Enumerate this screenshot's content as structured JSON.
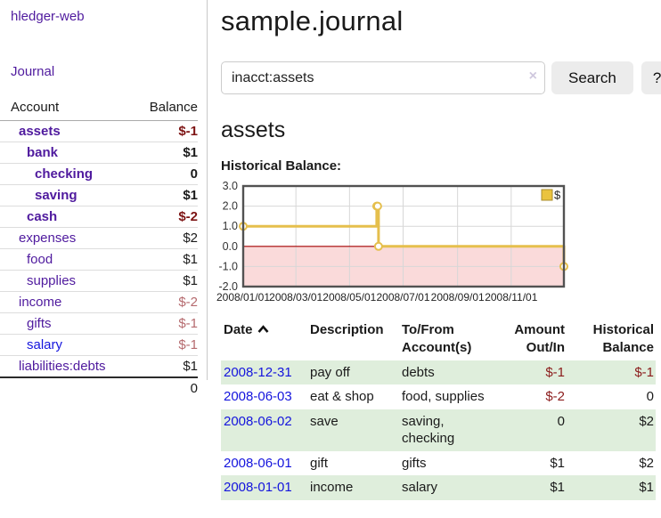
{
  "sidebar": {
    "app_title": "hledger-web",
    "journal_link": "Journal",
    "accounts_header": {
      "account": "Account",
      "balance": "Balance"
    },
    "accounts": [
      {
        "name": "assets",
        "depth": 1,
        "bold": true,
        "balance": "$-1",
        "balance_tone": "neg-strong",
        "link_tone": "purple"
      },
      {
        "name": "bank",
        "depth": 2,
        "bold": true,
        "balance": "$1",
        "balance_tone": "pos",
        "link_tone": "purple"
      },
      {
        "name": "checking",
        "depth": 3,
        "bold": true,
        "balance": "0",
        "balance_tone": "pos",
        "link_tone": "purple"
      },
      {
        "name": "saving",
        "depth": 3,
        "bold": true,
        "balance": "$1",
        "balance_tone": "pos",
        "link_tone": "purple"
      },
      {
        "name": "cash",
        "depth": 2,
        "bold": true,
        "balance": "$-2",
        "balance_tone": "neg-strong",
        "link_tone": "purple"
      },
      {
        "name": "expenses",
        "depth": 1,
        "bold": false,
        "balance": "$2",
        "balance_tone": "pos",
        "link_tone": "purple"
      },
      {
        "name": "food",
        "depth": 2,
        "bold": false,
        "balance": "$1",
        "balance_tone": "pos",
        "link_tone": "purple"
      },
      {
        "name": "supplies",
        "depth": 2,
        "bold": false,
        "balance": "$1",
        "balance_tone": "pos",
        "link_tone": "purple"
      },
      {
        "name": "income",
        "depth": 1,
        "bold": false,
        "balance": "$-2",
        "balance_tone": "neg-muted",
        "link_tone": "purple"
      },
      {
        "name": "gifts",
        "depth": 2,
        "bold": false,
        "balance": "$-1",
        "balance_tone": "neg-muted",
        "link_tone": "purple"
      },
      {
        "name": "salary",
        "depth": 2,
        "bold": false,
        "balance": "$-1",
        "balance_tone": "neg-muted",
        "link_tone": "blue"
      },
      {
        "name": "liabilities:debts",
        "depth": 1,
        "bold": false,
        "balance": "$1",
        "balance_tone": "pos",
        "link_tone": "purple"
      }
    ],
    "total": "0"
  },
  "main": {
    "title": "sample.journal",
    "search": {
      "value": "inacct:assets",
      "clear_icon": "×",
      "button_label": "Search",
      "help_label": "?"
    },
    "account_heading": "assets",
    "chart_title": "Historical Balance:"
  },
  "register": {
    "headers": {
      "date": "Date",
      "description": "Description",
      "accounts": "To/From Account(s)",
      "amount": "Amount Out/In",
      "balance": "Historical Balance"
    },
    "rows": [
      {
        "date": "2008-12-31",
        "description": "pay off",
        "accounts": "debts",
        "amount": "$-1",
        "amount_tone": "neg",
        "balance": "$-1",
        "balance_tone": "neg",
        "shaded": true
      },
      {
        "date": "2008-06-03",
        "description": "eat & shop",
        "accounts": "food, supplies",
        "amount": "$-2",
        "amount_tone": "neg",
        "balance": "0",
        "balance_tone": "pos",
        "shaded": false
      },
      {
        "date": "2008-06-02",
        "description": "save",
        "accounts": "saving, checking",
        "amount": "0",
        "amount_tone": "pos",
        "balance": "$2",
        "balance_tone": "pos",
        "shaded": true
      },
      {
        "date": "2008-06-01",
        "description": "gift",
        "accounts": "gifts",
        "amount": "$1",
        "amount_tone": "pos",
        "balance": "$2",
        "balance_tone": "pos",
        "shaded": false
      },
      {
        "date": "2008-01-01",
        "description": "income",
        "accounts": "salary",
        "amount": "$1",
        "amount_tone": "pos",
        "balance": "$1",
        "balance_tone": "pos",
        "shaded": true
      }
    ]
  },
  "chart_data": {
    "type": "line",
    "title": "Historical Balance",
    "step": true,
    "x_range": [
      "2008-01-01",
      "2008-12-31"
    ],
    "ylim": [
      -2.0,
      3.0
    ],
    "y_ticks": [
      3.0,
      2.0,
      1.0,
      0.0,
      -1.0,
      -2.0
    ],
    "x_tick_dates": [
      "2008-01-01",
      "2008-03-01",
      "2008-05-01",
      "2008-07-01",
      "2008-09-01",
      "2008-11-01"
    ],
    "x_tick_labels": [
      "2008/01/01",
      "2008/03/01",
      "2008/05/01",
      "2008/07/01",
      "2008/09/01",
      "2008/11/01"
    ],
    "series": [
      {
        "name": "$",
        "points": [
          {
            "x": "2008-01-01",
            "y": 1
          },
          {
            "x": "2008-06-01",
            "y": 2
          },
          {
            "x": "2008-06-02",
            "y": 2
          },
          {
            "x": "2008-06-03",
            "y": 0
          },
          {
            "x": "2008-12-31",
            "y": -1
          }
        ]
      }
    ],
    "legend": {
      "position": "top-right",
      "label": "$"
    },
    "negative_region_shaded": true,
    "grid": true,
    "colors": {
      "line": "#e5bf4d",
      "marker_fill": "#ffffff",
      "negative_region": "#fadada",
      "zero_line": "#a40000",
      "grid": "#d7d7d7",
      "border": "#525252",
      "legend_fill": "#eac33e",
      "legend_border": "#a98e2f"
    }
  }
}
